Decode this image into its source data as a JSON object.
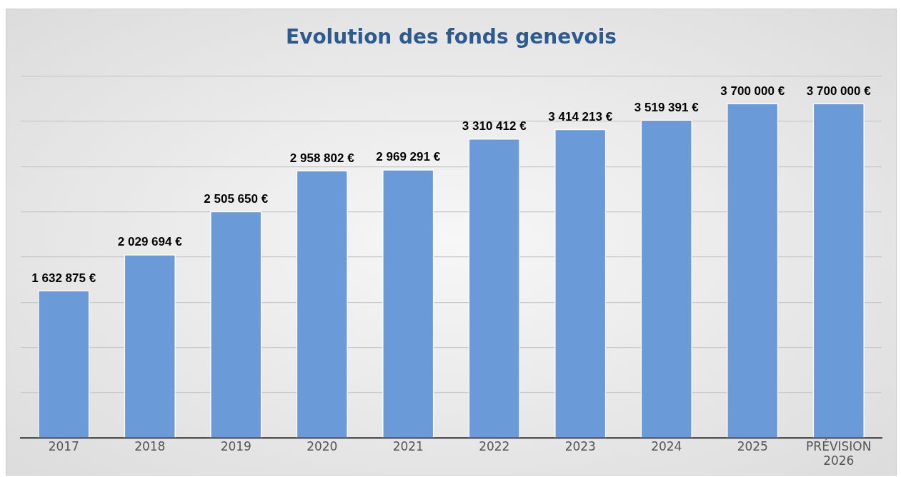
{
  "chart_data": {
    "type": "bar",
    "title": "Evolution des fonds genevois",
    "categories": [
      "2017",
      "2018",
      "2019",
      "2020",
      "2021",
      "2022",
      "2023",
      "2024",
      "2025",
      "PRÉVISION 2026"
    ],
    "values": [
      1632875,
      2029694,
      2505650,
      2958802,
      2969291,
      3310412,
      3414213,
      3519391,
      3700000,
      3700000
    ],
    "value_labels": [
      "1 632 875 €",
      "2 029 694 €",
      "2 505 650 €",
      "2 958 802 €",
      "2 969 291 €",
      "3 310 412 €",
      "3 414 213 €",
      "3 519 391 €",
      "3 700 000 €",
      "3 700 000 €"
    ],
    "color": "#6a9bd8",
    "ylim": [
      0,
      4000000
    ],
    "yticks": [
      {
        "value": 0,
        "label": null
      },
      {
        "value": 500000,
        "label": null
      },
      {
        "value": 1000000,
        "label": null
      },
      {
        "value": 1500000,
        "label": null
      },
      {
        "value": 2000000,
        "label": null
      },
      {
        "value": 2500000,
        "label": null
      },
      {
        "value": 3000000,
        "label": null
      },
      {
        "value": 3500000,
        "label": null
      },
      {
        "value": 4000000,
        "label": null
      }
    ],
    "grid": "y",
    "tick_labels": "x"
  }
}
